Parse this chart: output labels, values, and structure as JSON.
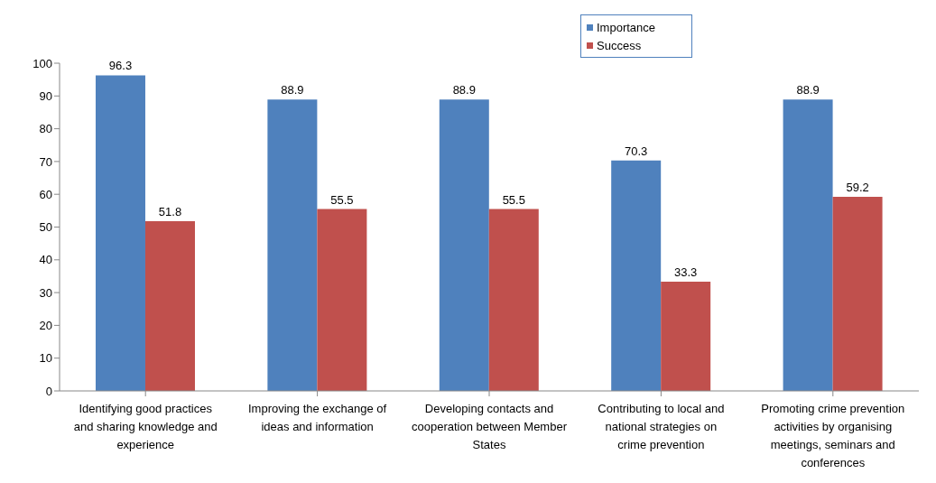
{
  "chart_data": {
    "type": "bar",
    "categories": [
      "Identifying good practices and sharing knowledge and experience",
      "Improving the exchange of ideas and information",
      "Developing contacts and cooperation between Member States",
      "Contributing to local and national strategies on crime prevention",
      "Promoting crime prevention activities by organising meetings, seminars and conferences"
    ],
    "series": [
      {
        "name": "Importance",
        "color": "#4f81bd",
        "values": [
          96.3,
          88.9,
          88.9,
          70.3,
          88.9
        ]
      },
      {
        "name": "Success",
        "color": "#c0504d",
        "values": [
          51.8,
          55.5,
          55.5,
          33.3,
          59.2
        ]
      }
    ],
    "ylim": [
      0,
      100
    ],
    "yticks": [
      0,
      10,
      20,
      30,
      40,
      50,
      60,
      70,
      80,
      90,
      100
    ],
    "grid": false,
    "legend": "top",
    "data_labels": true
  }
}
